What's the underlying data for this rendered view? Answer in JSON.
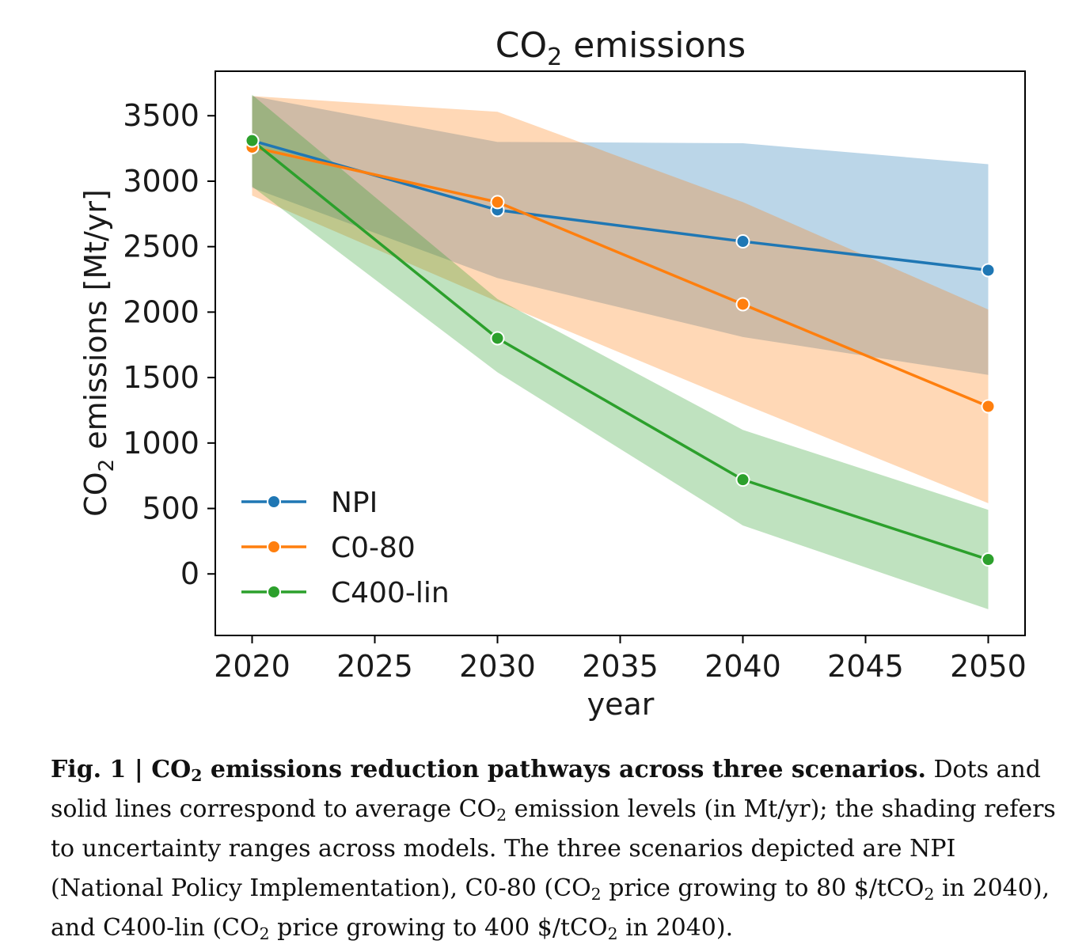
{
  "chart_data": {
    "type": "line",
    "title": {
      "pre": "CO",
      "sub": "2",
      "post": " emissions"
    },
    "xlabel": "year",
    "ylabel": {
      "pre": "CO",
      "sub": "2",
      "post": " emissions [Mt/yr]"
    },
    "xlim": [
      2018.5,
      2051.5
    ],
    "ylim": [
      -470,
      3840
    ],
    "xticks": [
      2020,
      2025,
      2030,
      2035,
      2040,
      2045,
      2050
    ],
    "yticks": [
      0,
      500,
      1000,
      1500,
      2000,
      2500,
      3000,
      3500
    ],
    "x": [
      2020,
      2030,
      2040,
      2050
    ],
    "legend_position": "lower-left",
    "series": [
      {
        "name": "NPI",
        "color": "#1f77b4",
        "values": [
          3310,
          2780,
          2540,
          2320
        ],
        "lower": [
          2950,
          2260,
          1810,
          1520
        ],
        "upper": [
          3650,
          3300,
          3290,
          3130
        ]
      },
      {
        "name": "C0-80",
        "color": "#ff7f0e",
        "values": [
          3260,
          2840,
          2060,
          1280
        ],
        "lower": [
          2890,
          2080,
          1300,
          540
        ],
        "upper": [
          3650,
          3530,
          2840,
          2020
        ]
      },
      {
        "name": "C400-lin",
        "color": "#2ca02c",
        "values": [
          3310,
          1800,
          720,
          110
        ],
        "lower": [
          2960,
          1540,
          370,
          -270
        ],
        "upper": [
          3660,
          2100,
          1100,
          490
        ]
      }
    ]
  },
  "caption": {
    "fig_label": "Fig. 1 | CO",
    "fig_label_sub": "2",
    "fig_title": " emissions reduction pathways across three scenarios.",
    "t1": " Dots and solid lines correspond to average CO",
    "s1": "2",
    "t2": " emission levels (in Mt/yr); the shading refers to uncertainty ranges across models. The three scenarios depicted are NPI (National Policy Implementation), C0-80 (CO",
    "s2": "2",
    "t3": " price growing to 80 $/tCO",
    "s3": "2",
    "t4": " in 2040), and C400-lin (CO",
    "s4": "2",
    "t5": " price growing to 400 $/tCO",
    "s5": "2",
    "t6": " in 2040)."
  }
}
